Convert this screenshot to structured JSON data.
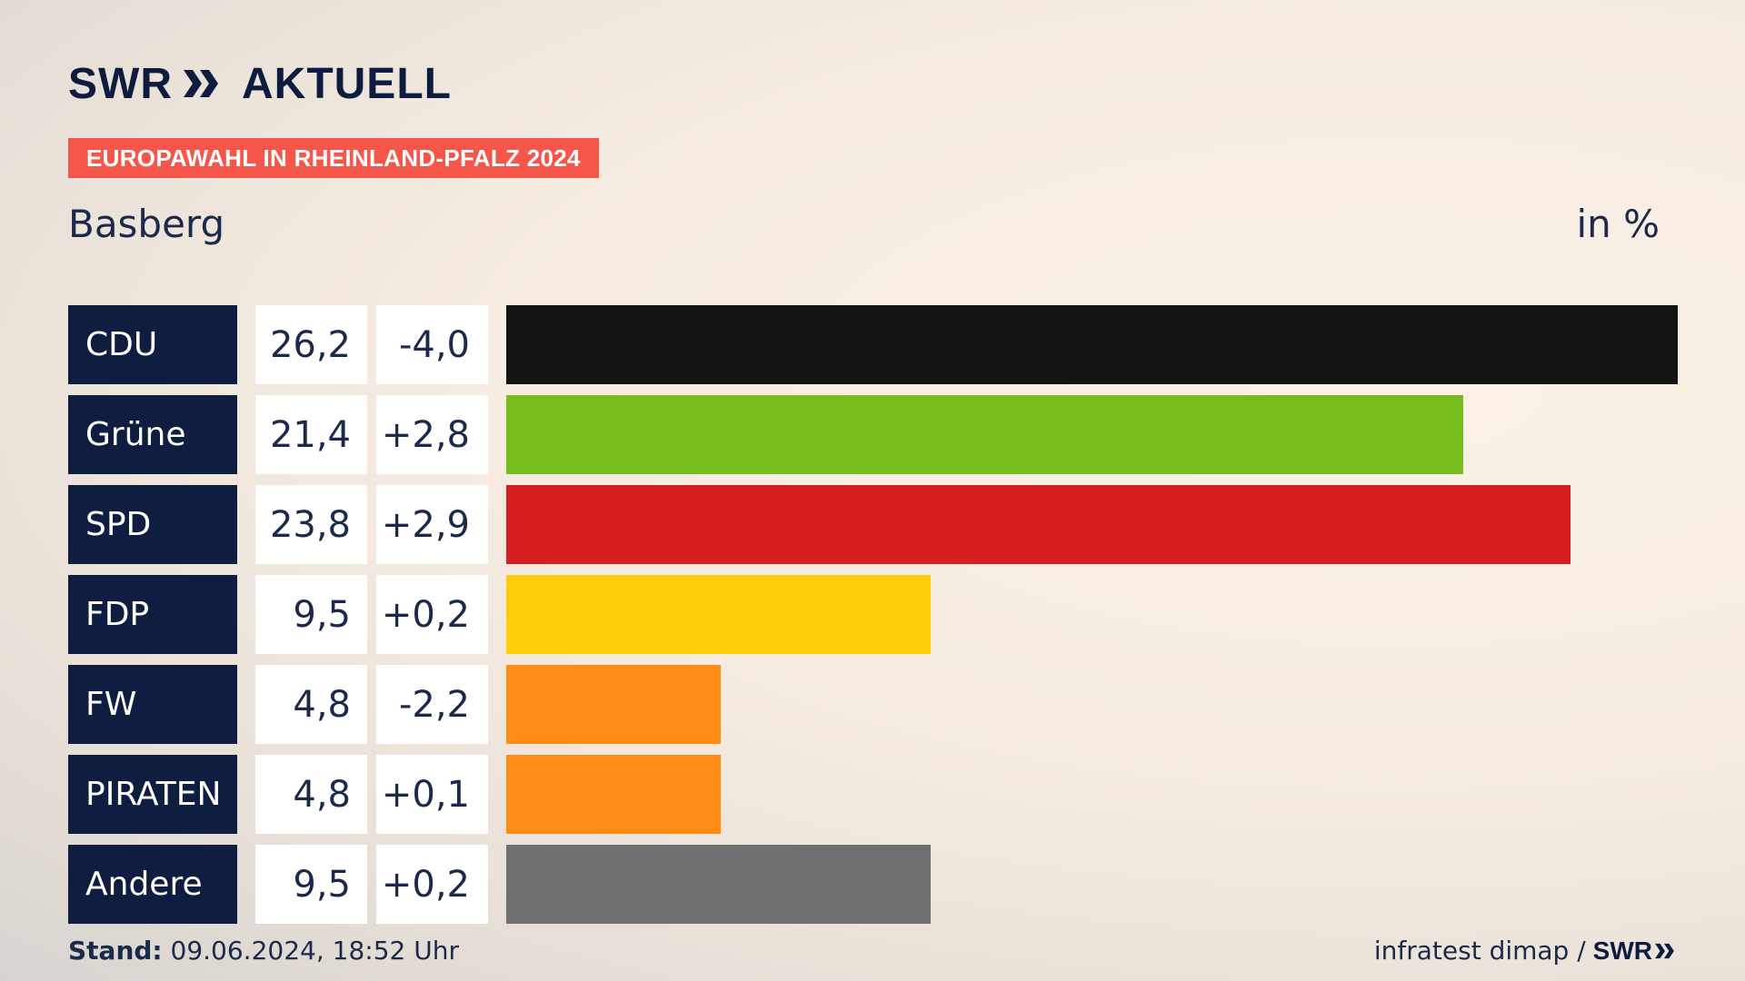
{
  "brand": {
    "logo_swr": "SWR",
    "logo_aktuell": "AKTUELL"
  },
  "banner": "EUROPAWAHL IN RHEINLAND-PFALZ 2024",
  "location": "Basberg",
  "unit_label": "in %",
  "colors": {
    "accent": "#f4574a",
    "label_bg": "#0f1d40"
  },
  "chart_data": {
    "type": "bar",
    "orientation": "horizontal",
    "categories": [
      "CDU",
      "Grüne",
      "SPD",
      "FDP",
      "FW",
      "PIRATEN",
      "Andere"
    ],
    "values": [
      26.2,
      21.4,
      23.8,
      9.5,
      4.8,
      4.8,
      9.5
    ],
    "value_labels": [
      "26,2",
      "21,4",
      "23,8",
      "9,5",
      "4,8",
      "4,8",
      "9,5"
    ],
    "diff_labels": [
      "-4,0",
      "+2,8",
      "+2,9",
      "+0,2",
      "-2,2",
      "+0,1",
      "+0,2"
    ],
    "diffs": [
      -4.0,
      2.8,
      2.9,
      0.2,
      -2.2,
      0.1,
      0.2
    ],
    "colors": [
      "#141414",
      "#79bd1c",
      "#d71f1f",
      "#ffcc0a",
      "#ff8c14",
      "#ff8c14",
      "#6f7072"
    ],
    "xlim": [
      0,
      26.2
    ]
  },
  "footer": {
    "stand_label": "Stand:",
    "stand_value": " 09.06.2024, 18:52 Uhr",
    "source": "infratest dimap /",
    "source_brand": "SWR"
  }
}
